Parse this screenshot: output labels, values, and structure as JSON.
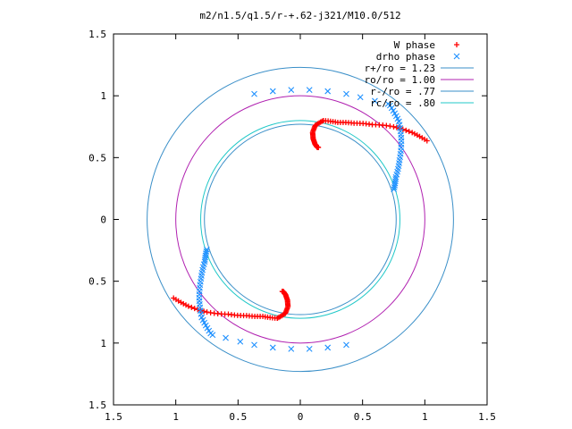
{
  "chart_data": {
    "type": "scatter",
    "title": "m2/n1.5/q1.5/r-+.62-j321/M10.0/512",
    "xlabel": "",
    "ylabel": "",
    "xlim": [
      -1.5,
      1.5
    ],
    "ylim": [
      -1.5,
      1.5
    ],
    "x_ticks": [
      -1.5,
      -1,
      -0.5,
      0,
      0.5,
      1,
      1.5
    ],
    "y_ticks": [
      -1.5,
      -1,
      -0.5,
      0,
      0.5,
      1,
      1.5
    ],
    "x_tick_labels": [
      "1.5",
      "1",
      "0.5",
      "0",
      "0.5",
      "1",
      "1.5"
    ],
    "y_tick_labels": [
      "1.5",
      "1",
      "0.5",
      "0",
      "0.5",
      "1",
      "1.5"
    ],
    "grid": false,
    "legend_position": "top-right",
    "colors": {
      "w_phase": "#ff0000",
      "drho_phase": "#1e90ff",
      "r_plus": "#3a8fc8",
      "ro": "#b020b0",
      "r_minus": "#3a8fc8",
      "rc": "#20c8c8"
    },
    "series": [
      {
        "name": "W phase",
        "marker": "+",
        "arms": [
          {
            "angle_deg": [
              77,
              69,
              61,
              53,
              45,
              38,
              32
            ],
            "radius": [
              0.82,
              0.84,
              0.89,
              0.96,
              1.06,
              1.14,
              1.2
            ]
          },
          {
            "angle_deg": [
              77,
              81,
              82,
              81,
              79,
              77,
              76
            ],
            "radius": [
              0.82,
              0.77,
              0.71,
              0.66,
              0.62,
              0.6,
              0.6
            ]
          },
          {
            "angle_deg": [
              257,
              249,
              241,
              233,
              225,
              218,
              212
            ],
            "radius": [
              0.82,
              0.84,
              0.89,
              0.96,
              1.06,
              1.14,
              1.2
            ]
          },
          {
            "angle_deg": [
              257,
              261,
              262,
              261,
              259,
              257,
              256
            ],
            "radius": [
              0.82,
              0.77,
              0.71,
              0.66,
              0.62,
              0.6,
              0.6
            ]
          }
        ]
      },
      {
        "name": "drho phase",
        "marker": "x",
        "arms": [
          {
            "angle_deg": [
              52,
              45,
              38,
              31,
              24,
              18
            ],
            "radius": [
              1.17,
              1.12,
              1.03,
              0.93,
              0.84,
              0.79
            ]
          },
          {
            "angle_deg": [
              53,
              58,
              64,
              70,
              78,
              86,
              94,
              102,
              110
            ],
            "radius": [
              1.17,
              1.13,
              1.1,
              1.08,
              1.06,
              1.05,
              1.05,
              1.06,
              1.08
            ]
          },
          {
            "angle_deg": [
              232,
              225,
              218,
              211,
              204,
              198
            ],
            "radius": [
              1.17,
              1.12,
              1.03,
              0.93,
              0.84,
              0.79
            ]
          },
          {
            "angle_deg": [
              233,
              238,
              244,
              250,
              258,
              266,
              274,
              282,
              290
            ],
            "radius": [
              1.17,
              1.13,
              1.1,
              1.08,
              1.06,
              1.05,
              1.05,
              1.06,
              1.08
            ]
          }
        ]
      }
    ],
    "circles": [
      {
        "name": "r+/ro = 1.23",
        "radius": 1.23
      },
      {
        "name": "ro/ro = 1.00",
        "radius": 1.0
      },
      {
        "name": "r-/ro = .77",
        "radius": 0.77
      },
      {
        "name": "rc/ro = .80",
        "radius": 0.8
      }
    ]
  }
}
